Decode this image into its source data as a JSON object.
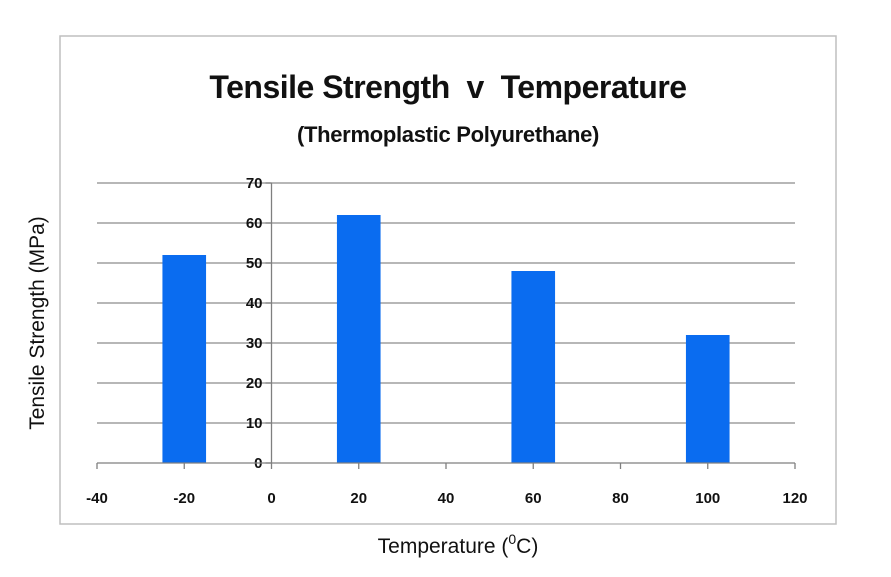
{
  "chart_data": {
    "type": "bar",
    "title": "Tensile Strength  v  Temperature",
    "subtitle": "(Thermoplastic Polyurethane)",
    "xlabel": {
      "text": "Temperature (",
      "superscript": "0",
      "suffix": "C)"
    },
    "ylabel": "Tensile Strength (MPa)",
    "xlim": [
      -40,
      120
    ],
    "ylim": [
      0,
      70
    ],
    "x_ticks": [
      -40,
      -20,
      0,
      20,
      40,
      60,
      80,
      100,
      120
    ],
    "y_ticks": [
      0,
      10,
      20,
      30,
      40,
      50,
      60,
      70
    ],
    "x": [
      -20,
      20,
      60,
      100
    ],
    "values": [
      52,
      62,
      48,
      32
    ],
    "bar_width": 10,
    "grid": true,
    "legend": "none",
    "colors": {
      "bar": "#0a6cf0",
      "grid": "#8c8c8c",
      "axis": "#7f7f7f",
      "frame": "#bfbfbf"
    }
  }
}
